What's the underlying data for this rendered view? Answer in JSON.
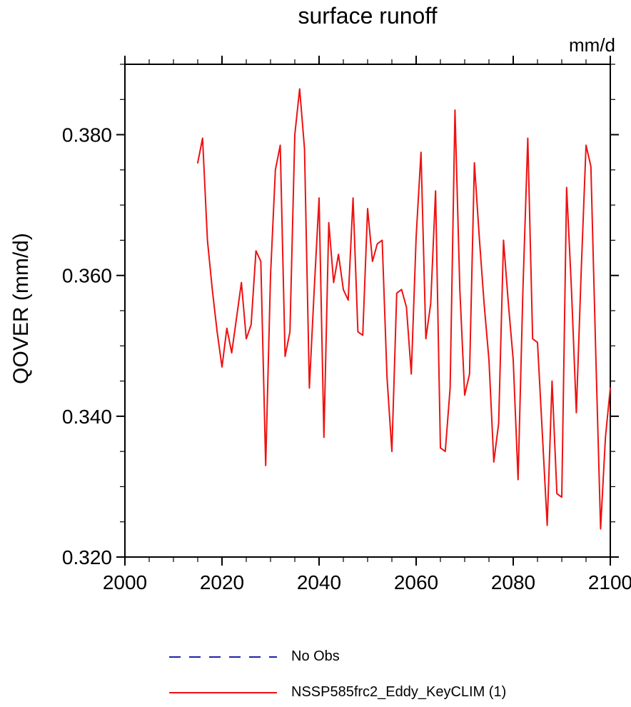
{
  "title": "surface runoff",
  "units_label": "mm/d",
  "y_axis_title": "QOVER  (mm/d)",
  "legend": [
    {
      "label": "No Obs",
      "color": "#2121ad",
      "line_style": "dashed"
    },
    {
      "label": "NSSP585frc2_Eddy_KeyCLIM (1)",
      "color": "#ee1111",
      "line_style": "solid"
    }
  ],
  "chart_data": {
    "type": "line",
    "title": "surface runoff",
    "xlabel": "",
    "ylabel": "QOVER (mm/d)",
    "units": "mm/d",
    "xlim": [
      2000,
      2100
    ],
    "ylim": [
      0.32,
      0.39
    ],
    "x_ticks": [
      2000,
      2020,
      2040,
      2060,
      2080,
      2100
    ],
    "y_ticks": [
      0.32,
      0.34,
      0.36,
      0.38
    ],
    "x_minor_step": 5,
    "y_minor_step": 0.005,
    "grid": false,
    "legend_position": "below",
    "series": [
      {
        "name": "NSSP585frc2_Eddy_KeyCLIM (1)",
        "color": "#ee1111",
        "x": [
          2015,
          2016,
          2017,
          2018,
          2019,
          2020,
          2021,
          2022,
          2023,
          2024,
          2025,
          2026,
          2027,
          2028,
          2029,
          2030,
          2031,
          2032,
          2033,
          2034,
          2035,
          2036,
          2037,
          2038,
          2039,
          2040,
          2041,
          2042,
          2043,
          2044,
          2045,
          2046,
          2047,
          2048,
          2049,
          2050,
          2051,
          2052,
          2053,
          2054,
          2055,
          2056,
          2057,
          2058,
          2059,
          2060,
          2061,
          2062,
          2063,
          2064,
          2065,
          2066,
          2067,
          2068,
          2069,
          2070,
          2071,
          2072,
          2073,
          2074,
          2075,
          2076,
          2077,
          2078,
          2079,
          2080,
          2081,
          2082,
          2083,
          2084,
          2085,
          2086,
          2087,
          2088,
          2089,
          2090,
          2091,
          2092,
          2093,
          2094,
          2095,
          2096,
          2097,
          2098,
          2099,
          2100
        ],
        "y": [
          0.376,
          0.3795,
          0.365,
          0.358,
          0.352,
          0.347,
          0.3525,
          0.349,
          0.354,
          0.359,
          0.351,
          0.353,
          0.3635,
          0.362,
          0.333,
          0.36,
          0.375,
          0.3785,
          0.3485,
          0.352,
          0.38,
          0.3865,
          0.378,
          0.344,
          0.358,
          0.371,
          0.337,
          0.3675,
          0.359,
          0.363,
          0.358,
          0.3565,
          0.371,
          0.352,
          0.3515,
          0.3695,
          0.362,
          0.3645,
          0.365,
          0.3455,
          0.335,
          0.3575,
          0.358,
          0.3555,
          0.346,
          0.3655,
          0.3775,
          0.351,
          0.356,
          0.372,
          0.3355,
          0.335,
          0.344,
          0.3835,
          0.358,
          0.343,
          0.346,
          0.376,
          0.3655,
          0.356,
          0.348,
          0.3335,
          0.339,
          0.365,
          0.356,
          0.348,
          0.331,
          0.358,
          0.3795,
          0.351,
          0.3505,
          0.3375,
          0.3245,
          0.345,
          0.329,
          0.3285,
          0.3725,
          0.358,
          0.3405,
          0.3605,
          0.3785,
          0.3755,
          0.349,
          0.324,
          0.337,
          0.344
        ]
      }
    ]
  }
}
